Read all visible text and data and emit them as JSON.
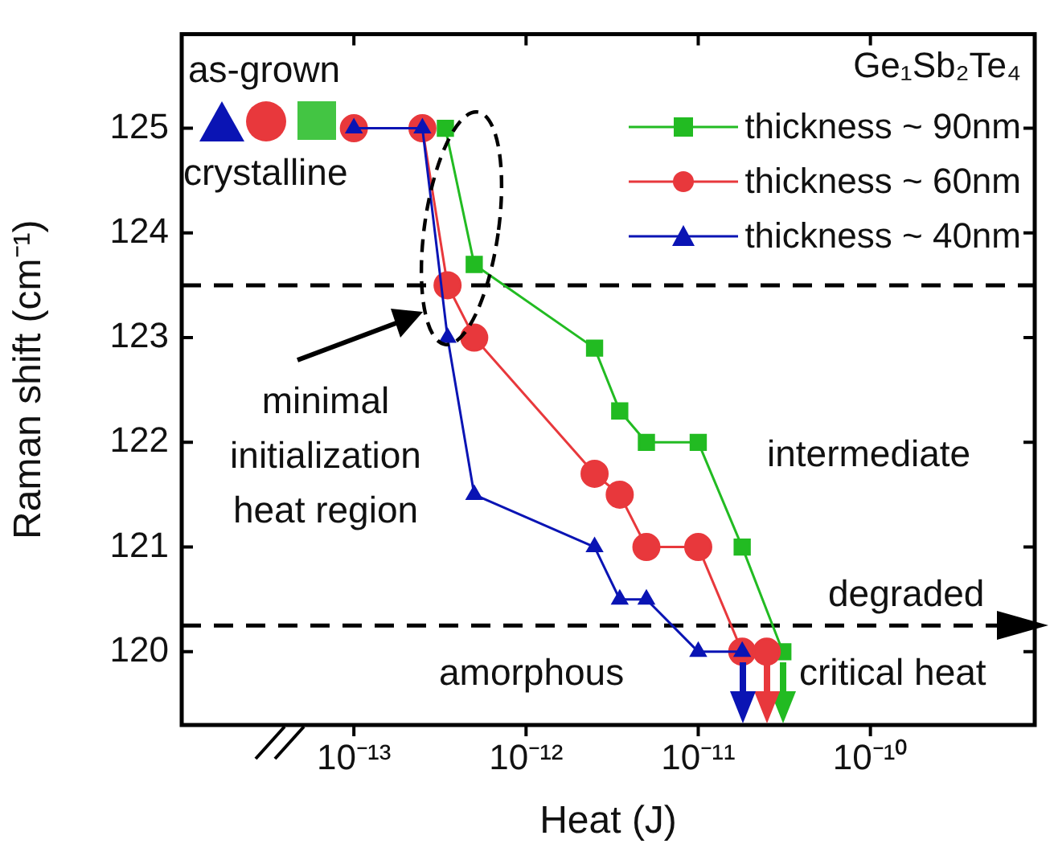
{
  "chart_data": {
    "type": "line",
    "xlabel": "Heat (J)",
    "ylabel": "Raman shift (cm⁻¹)",
    "legend_title": "Ge₁Sb₂Te₄",
    "log": "x",
    "grid": false,
    "legend": "top right",
    "xlim": [
      1e-14,
      9e-10
    ],
    "ylim": [
      119.3,
      125.9
    ],
    "xticks": [
      {
        "value": 1e-13,
        "label": "10⁻¹³"
      },
      {
        "value": 1e-12,
        "label": "10⁻¹²"
      },
      {
        "value": 1e-11,
        "label": "10⁻¹¹"
      },
      {
        "value": 1e-10,
        "label": "10⁻¹⁰"
      }
    ],
    "yticks": [
      120,
      121,
      122,
      123,
      124,
      125
    ],
    "series": [
      {
        "name": "thickness ~ 90nm",
        "color": "#22bb22",
        "marker": "square",
        "x": [
          3.4e-13,
          5e-13,
          2.5e-12,
          3.5e-12,
          5e-12,
          1e-11,
          1.8e-11,
          3.1e-11
        ],
        "values": [
          125,
          123.7,
          122.9,
          122.3,
          122,
          122,
          121,
          120
        ]
      },
      {
        "name": "thickness ~ 60nm",
        "color": "#e8383c",
        "marker": "circle",
        "x": [
          1e-13,
          2.5e-13,
          3.5e-13,
          5e-13,
          2.5e-12,
          3.5e-12,
          5e-12,
          1e-11,
          1.8e-11,
          2.5e-11
        ],
        "values": [
          125,
          125,
          123.5,
          123,
          121.7,
          121.5,
          121,
          121,
          120,
          120
        ]
      },
      {
        "name": "thickness ~ 40nm",
        "color": "#0a14b4",
        "marker": "triangle",
        "x": [
          1e-13,
          2.5e-13,
          3.5e-13,
          5e-13,
          2.5e-12,
          3.5e-12,
          5e-12,
          1e-11,
          1.8e-11
        ],
        "values": [
          125,
          125,
          123,
          121.5,
          121,
          120.5,
          120.5,
          120,
          120
        ]
      }
    ],
    "ref_lines": [
      {
        "axis": "y",
        "value": 123.5,
        "color": "#000000",
        "line_style": "dashed"
      },
      {
        "axis": "y",
        "value": 120.25,
        "color": "#000000",
        "line_style": "dashed"
      }
    ],
    "annotations": [
      "as-grown",
      "crystalline",
      "minimal initialization heat region",
      "intermediate",
      "degraded",
      "amorphous",
      "critical heat"
    ]
  }
}
